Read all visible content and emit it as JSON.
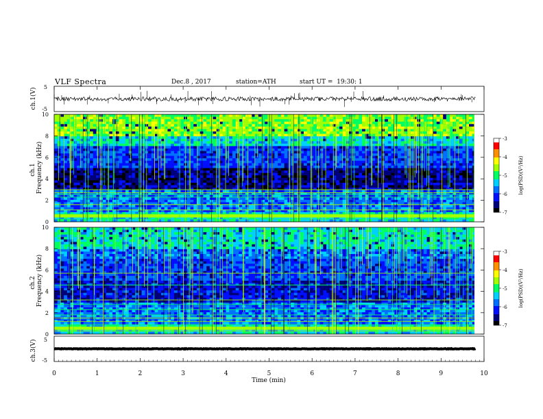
{
  "header": {
    "title": "VLF Spectra",
    "date": "Dec.8 , 2017",
    "station": "station=ATH",
    "start_ut": "start UT =  19:30: 1"
  },
  "colors": {
    "spectrogram_scale": [
      "#000000",
      "#00007a",
      "#0010ff",
      "#0070ff",
      "#00d0ff",
      "#00ff60",
      "#a0ff00",
      "#ffff00",
      "#ff9000",
      "#ff0000",
      "#ffffff"
    ],
    "trace": "#000000"
  },
  "chart_data": [
    {
      "type": "line",
      "name": "ch1-voltage",
      "ylabel": "ch.1(V)",
      "ylim": [
        -5,
        5
      ],
      "yticks": [
        "5",
        "-5"
      ],
      "xlim": [
        0,
        10
      ],
      "baseline": 0,
      "noise_amplitude": 0.8,
      "x_end": 9.8
    },
    {
      "type": "heatmap",
      "name": "ch1-spectrogram",
      "channel_label": "ch.1",
      "ylabel": "Frequency (kHz)",
      "ylim": [
        0,
        10
      ],
      "yticks": [
        "0",
        "2",
        "4",
        "6",
        "8",
        "10"
      ],
      "xlim": [
        0,
        10
      ],
      "x_end": 9.8,
      "colorbar": {
        "label": "log(PSD)(V²/Hz)",
        "range": [
          -7,
          -3
        ],
        "ticks": [
          "-3",
          "-4",
          "-5",
          "-6",
          "-7"
        ]
      }
    },
    {
      "type": "heatmap",
      "name": "ch2-spectrogram",
      "channel_label": "ch.2",
      "ylabel": "Frequency (kHz)",
      "ylim": [
        0,
        10
      ],
      "yticks": [
        "0",
        "2",
        "4",
        "6",
        "8",
        "10"
      ],
      "xlim": [
        0,
        10
      ],
      "x_end": 9.8,
      "colorbar": {
        "label": "log(PSD)(V²/Hz)",
        "range": [
          -7,
          -3
        ],
        "ticks": [
          "-3",
          "-4",
          "-5",
          "-6",
          "-7"
        ]
      }
    },
    {
      "type": "line",
      "name": "ch3-voltage",
      "ylabel": "ch.3(V)",
      "ylim": [
        -5,
        5
      ],
      "yticks": [
        "5",
        "-5"
      ],
      "xlim": [
        0,
        10
      ],
      "xlabel": "Time (min)",
      "xticks": [
        "0",
        "1",
        "2",
        "3",
        "4",
        "5",
        "6",
        "7",
        "8",
        "9",
        "10"
      ],
      "baseline": 0,
      "noise_amplitude": 0.1,
      "x_end": 9.8
    }
  ]
}
